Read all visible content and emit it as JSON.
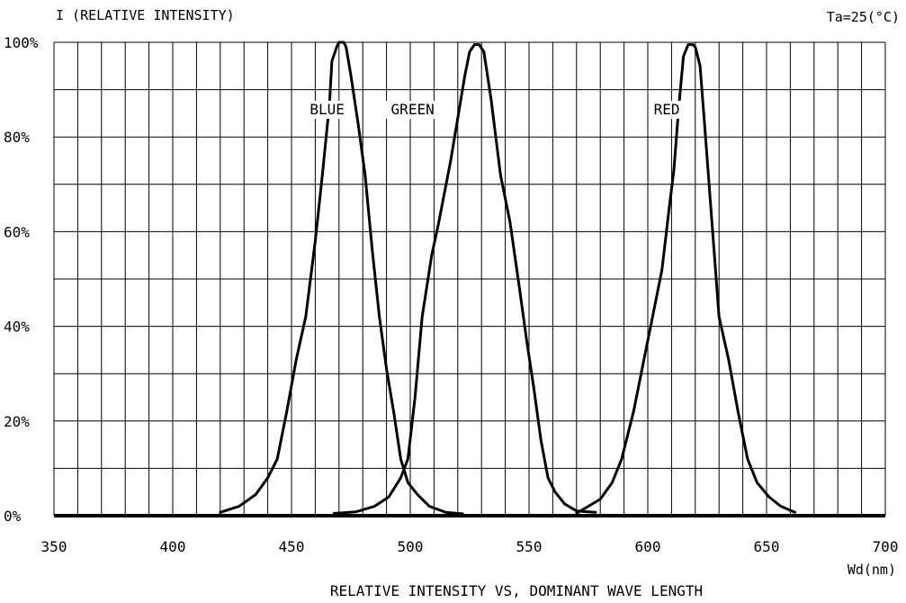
{
  "chart_data": {
    "type": "line",
    "title": "RELATIVE INTENSITY  VS, DOMINANT WAVE LENGTH",
    "ylabel": "I (RELATIVE INTENSITY)",
    "xlabel": "Wd(nm)",
    "condition": "Ta=25(°C)",
    "xlim": [
      350,
      700
    ],
    "ylim": [
      0,
      100
    ],
    "grid": true,
    "x_ticks": [
      350,
      400,
      450,
      500,
      550,
      600,
      650,
      700
    ],
    "x_tick_labels": [
      "350",
      "400",
      "450",
      "500",
      "550",
      "600",
      "650",
      "700"
    ],
    "y_ticks": [
      0,
      20,
      40,
      60,
      80,
      100
    ],
    "y_tick_labels": [
      "0%",
      "20%",
      "40%",
      "60%",
      "80%",
      "100%"
    ],
    "series": [
      {
        "name": "BLUE",
        "label_at": [
          465,
          85
        ],
        "points": [
          [
            420,
            0.7
          ],
          [
            428,
            2
          ],
          [
            435,
            4.5
          ],
          [
            440,
            8
          ],
          [
            444,
            12
          ],
          [
            448,
            22
          ],
          [
            452,
            33
          ],
          [
            456,
            42
          ],
          [
            460,
            58
          ],
          [
            463,
            72
          ],
          [
            466,
            87
          ],
          [
            467,
            96
          ],
          [
            469,
            99
          ],
          [
            470,
            100
          ],
          [
            472,
            100
          ],
          [
            473,
            99
          ],
          [
            475,
            93
          ],
          [
            478,
            83
          ],
          [
            481,
            72
          ],
          [
            484,
            56
          ],
          [
            487,
            42
          ],
          [
            490,
            31
          ],
          [
            493,
            22
          ],
          [
            496,
            12
          ],
          [
            499,
            7
          ],
          [
            503,
            4.5
          ],
          [
            508,
            2
          ],
          [
            515,
            0.7
          ],
          [
            522,
            0.4
          ]
        ]
      },
      {
        "name": "GREEN",
        "label_at": [
          501,
          85
        ],
        "points": [
          [
            468,
            0.5
          ],
          [
            477,
            0.8
          ],
          [
            485,
            2
          ],
          [
            491,
            4
          ],
          [
            496,
            8
          ],
          [
            499,
            12
          ],
          [
            502,
            25
          ],
          [
            505,
            42
          ],
          [
            509,
            55
          ],
          [
            512,
            62
          ],
          [
            517,
            75
          ],
          [
            520,
            84
          ],
          [
            523,
            93
          ],
          [
            525,
            98
          ],
          [
            527,
            99.5
          ],
          [
            529,
            99.5
          ],
          [
            531,
            98
          ],
          [
            534,
            88
          ],
          [
            538,
            72
          ],
          [
            542,
            62
          ],
          [
            546,
            48
          ],
          [
            549,
            37
          ],
          [
            552,
            27
          ],
          [
            555,
            16
          ],
          [
            558,
            8
          ],
          [
            561,
            5
          ],
          [
            565,
            2.5
          ],
          [
            570,
            1
          ],
          [
            578,
            0.7
          ]
        ]
      },
      {
        "name": "RED",
        "label_at": [
          608,
          85
        ],
        "points": [
          [
            570,
            0.5
          ],
          [
            575,
            2
          ],
          [
            580,
            3.5
          ],
          [
            585,
            7
          ],
          [
            589,
            12
          ],
          [
            594,
            22
          ],
          [
            598,
            32
          ],
          [
            602,
            42
          ],
          [
            606,
            52
          ],
          [
            609,
            65
          ],
          [
            611,
            73
          ],
          [
            613,
            86
          ],
          [
            615,
            97
          ],
          [
            617,
            99.5
          ],
          [
            619,
            99.5
          ],
          [
            620,
            99
          ],
          [
            622,
            95
          ],
          [
            624,
            82
          ],
          [
            627,
            62
          ],
          [
            630,
            42
          ],
          [
            634,
            33
          ],
          [
            638,
            22
          ],
          [
            642,
            12
          ],
          [
            646,
            7
          ],
          [
            651,
            4
          ],
          [
            656,
            2
          ],
          [
            662,
            0.7
          ]
        ]
      }
    ]
  }
}
